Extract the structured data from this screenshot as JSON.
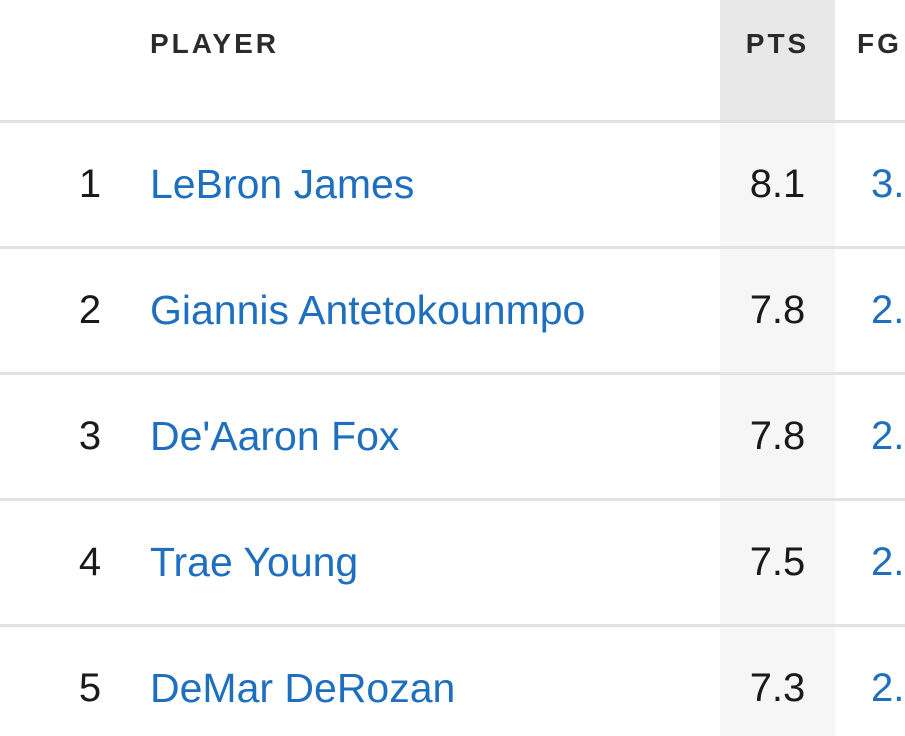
{
  "table": {
    "columns": {
      "player": "PLAYER",
      "pts": "PTS",
      "fg": "FG"
    },
    "rows": [
      {
        "rank": "1",
        "player": "LeBron James",
        "pts": "8.1",
        "fg": "3."
      },
      {
        "rank": "2",
        "player": "Giannis Antetokounmpo",
        "pts": "7.8",
        "fg": "2."
      },
      {
        "rank": "3",
        "player": "De'Aaron Fox",
        "pts": "7.8",
        "fg": "2."
      },
      {
        "rank": "4",
        "player": "Trae Young",
        "pts": "7.5",
        "fg": "2."
      },
      {
        "rank": "5",
        "player": "DeMar DeRozan",
        "pts": "7.3",
        "fg": "2."
      }
    ]
  },
  "colors": {
    "link": "#1e6fbf",
    "sorted_column_header_bg": "#e8e8e8",
    "text": "#1a1a1a"
  }
}
